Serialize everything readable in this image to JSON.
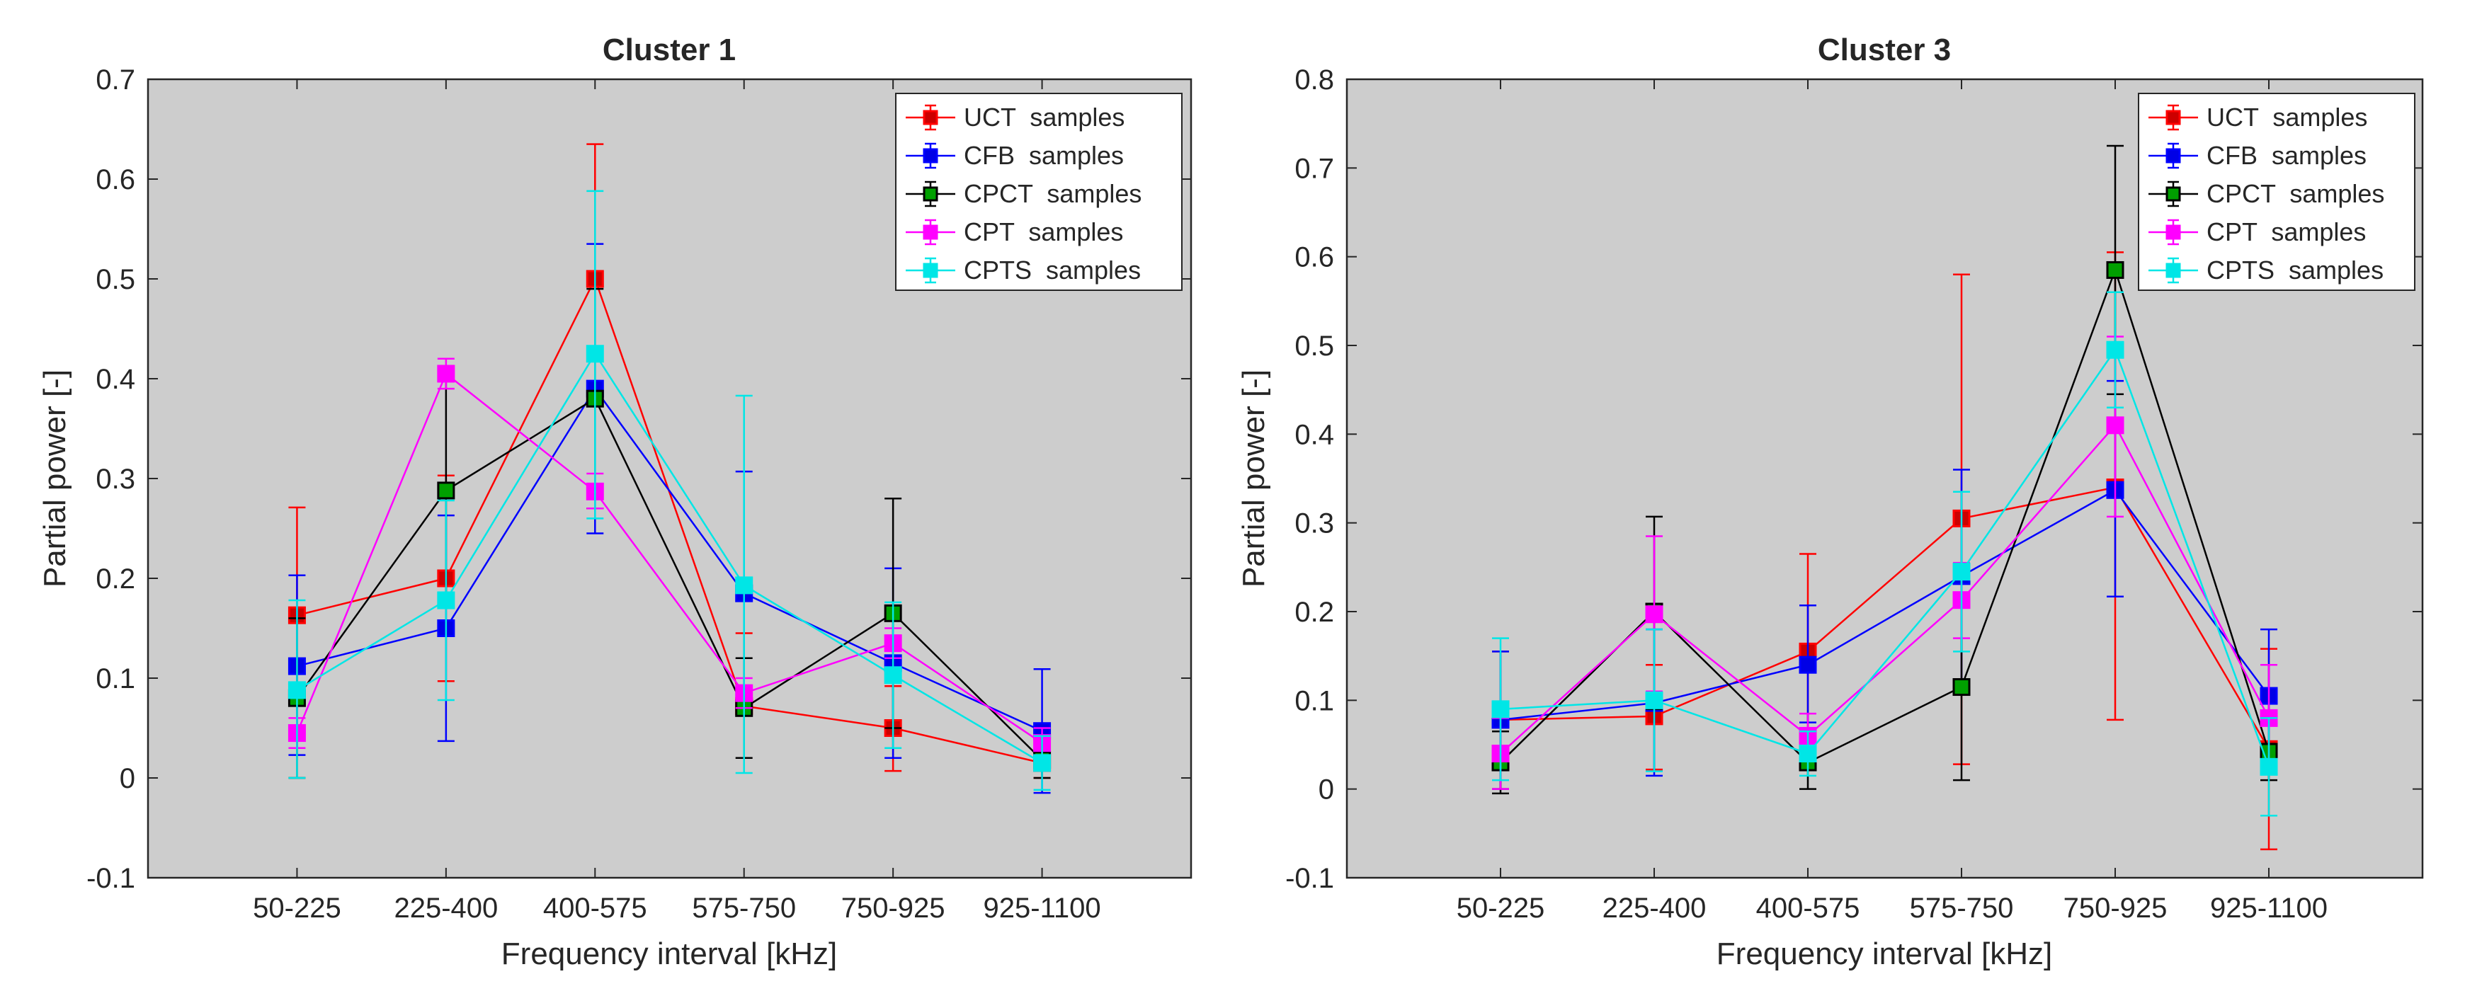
{
  "chart_data": [
    {
      "type": "line",
      "title": "Cluster 1",
      "xlabel": "Frequency interval [kHz]",
      "ylabel": "Partial power [-]",
      "categories": [
        "50-225",
        "225-400",
        "400-575",
        "575-750",
        "750-925",
        "925-1100"
      ],
      "ylim": [
        -0.1,
        0.7
      ],
      "yticks": [
        "-0.1",
        "0",
        "0.1",
        "0.2",
        "0.3",
        "0.4",
        "0.5",
        "0.6",
        "0.7"
      ],
      "xrange": [
        0,
        7
      ],
      "legend_position": "top-right",
      "series": [
        {
          "name": "UCT  samples",
          "color": "#ff0000",
          "marker_fill": "#cc0000",
          "values": [
            0.163,
            0.2,
            0.5,
            0.072,
            0.05,
            0.015
          ],
          "err_low": [
            0.163,
            0.097,
            0.378,
            0.072,
            0.007,
            0.0
          ],
          "err_high": [
            0.271,
            0.303,
            0.635,
            0.145,
            0.092,
            0.03
          ]
        },
        {
          "name": "CFB  samples",
          "color": "#0000ff",
          "marker_fill": "#0000e6",
          "values": [
            0.112,
            0.15,
            0.39,
            0.185,
            0.115,
            0.047
          ],
          "err_low": [
            0.023,
            0.037,
            0.245,
            0.068,
            0.02,
            -0.015
          ],
          "err_high": [
            0.203,
            0.263,
            0.535,
            0.307,
            0.21,
            0.109
          ]
        },
        {
          "name": "CPCT  samples",
          "color": "#000000",
          "marker_fill": "#00a000",
          "values": [
            0.08,
            0.288,
            0.38,
            0.07,
            0.165,
            0.018
          ],
          "err_low": [
            0.0,
            0.17,
            0.27,
            0.02,
            0.05,
            0.0
          ],
          "err_high": [
            0.16,
            0.405,
            0.49,
            0.12,
            0.28,
            0.036
          ]
        },
        {
          "name": "CPT  samples",
          "color": "#ff00ff",
          "marker_fill": "#ff00ff",
          "values": [
            0.045,
            0.405,
            0.287,
            0.085,
            0.135,
            0.035
          ],
          "err_low": [
            0.03,
            0.39,
            0.27,
            0.07,
            0.12,
            0.02
          ],
          "err_high": [
            0.06,
            0.42,
            0.305,
            0.1,
            0.15,
            0.05
          ]
        },
        {
          "name": "CPTS  samples",
          "color": "#00e6e6",
          "marker_fill": "#00e6e6",
          "values": [
            0.088,
            0.178,
            0.425,
            0.193,
            0.103,
            0.015
          ],
          "err_low": [
            0.0,
            0.078,
            0.26,
            0.005,
            0.03,
            -0.012
          ],
          "err_high": [
            0.178,
            0.278,
            0.588,
            0.383,
            0.176,
            0.042
          ]
        }
      ]
    },
    {
      "type": "line",
      "title": "Cluster 3",
      "xlabel": "Frequency interval [kHz]",
      "ylabel": "Partial power [-]",
      "categories": [
        "50-225",
        "225-400",
        "400-575",
        "575-750",
        "750-925",
        "925-1100"
      ],
      "ylim": [
        -0.1,
        0.8
      ],
      "yticks": [
        "-0.1",
        "0",
        "0.1",
        "0.2",
        "0.3",
        "0.4",
        "0.5",
        "0.6",
        "0.7",
        "0.8"
      ],
      "xrange": [
        0,
        7
      ],
      "legend_position": "top-right",
      "series": [
        {
          "name": "UCT  samples",
          "color": "#ff0000",
          "marker_fill": "#cc0000",
          "values": [
            0.078,
            0.082,
            0.155,
            0.305,
            0.34,
            0.045
          ],
          "err_low": [
            0.0,
            0.022,
            0.045,
            0.028,
            0.078,
            -0.068
          ],
          "err_high": [
            0.155,
            0.14,
            0.265,
            0.58,
            0.605,
            0.158
          ]
        },
        {
          "name": "CFB  samples",
          "color": "#0000ff",
          "marker_fill": "#0000e6",
          "values": [
            0.078,
            0.097,
            0.14,
            0.24,
            0.337,
            0.105
          ],
          "err_low": [
            0.0,
            0.015,
            0.075,
            0.118,
            0.217,
            0.03
          ],
          "err_high": [
            0.155,
            0.18,
            0.207,
            0.36,
            0.46,
            0.18
          ]
        },
        {
          "name": "CPCT  samples",
          "color": "#000000",
          "marker_fill": "#00a000",
          "values": [
            0.03,
            0.2,
            0.03,
            0.115,
            0.585,
            0.042
          ],
          "err_low": [
            -0.005,
            0.09,
            0.0,
            0.01,
            0.445,
            0.01
          ],
          "err_high": [
            0.065,
            0.307,
            0.06,
            0.22,
            0.725,
            0.075
          ]
        },
        {
          "name": "CPT  samples",
          "color": "#ff00ff",
          "marker_fill": "#ff00ff",
          "values": [
            0.04,
            0.197,
            0.06,
            0.213,
            0.41,
            0.08
          ],
          "err_low": [
            0.0,
            0.11,
            0.035,
            0.17,
            0.307,
            0.02
          ],
          "err_high": [
            0.08,
            0.285,
            0.085,
            0.255,
            0.51,
            0.14
          ]
        },
        {
          "name": "CPTS  samples",
          "color": "#00e6e6",
          "marker_fill": "#00e6e6",
          "values": [
            0.09,
            0.1,
            0.04,
            0.245,
            0.495,
            0.025
          ],
          "err_low": [
            0.01,
            0.02,
            0.015,
            0.155,
            0.43,
            -0.03
          ],
          "err_high": [
            0.17,
            0.18,
            0.065,
            0.335,
            0.56,
            0.08
          ]
        }
      ]
    }
  ]
}
